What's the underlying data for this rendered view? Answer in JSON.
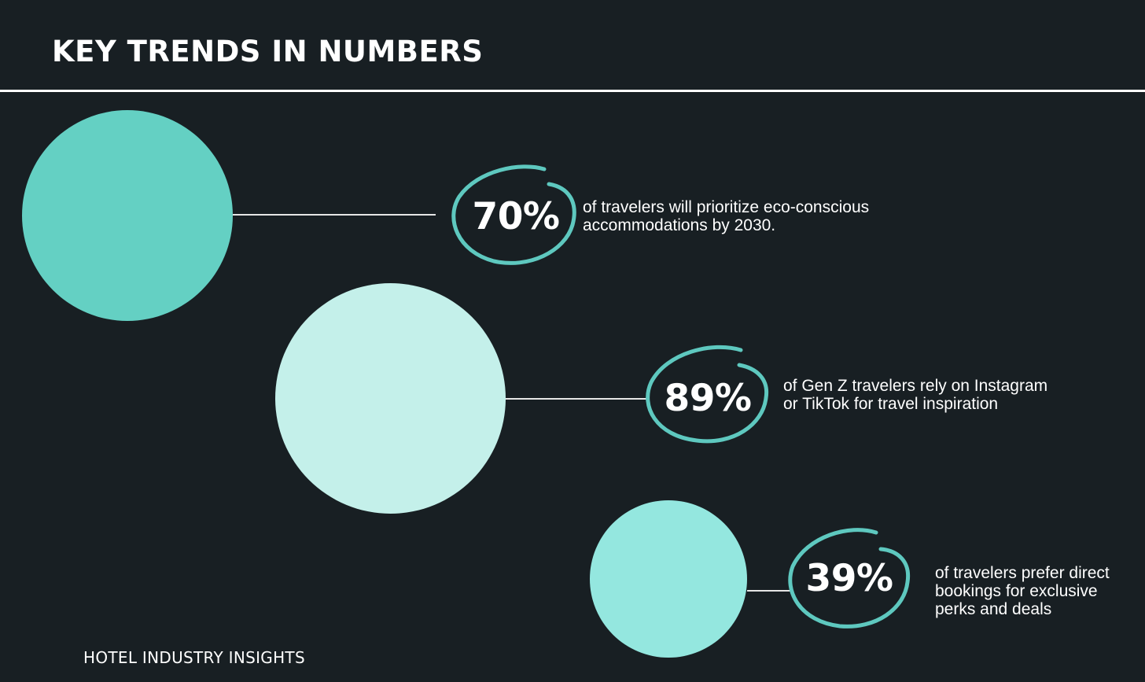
{
  "title": "KEY TRENDS IN NUMBERS",
  "footer": "HOTEL INDUSTRY INSIGHTS",
  "colors": {
    "background": "#181f23",
    "ring": "#5ec8bf",
    "circle_1": "#64d0c3",
    "circle_2": "#c4f0ea",
    "circle_3": "#94e7df"
  },
  "stats": [
    {
      "value": "70%",
      "lines": [
        "of travelers will prioritize eco-conscious",
        "accommodations by 2030."
      ]
    },
    {
      "value": "89%",
      "lines": [
        "of Gen Z travelers rely on Instagram",
        "or TikTok for travel inspiration"
      ]
    },
    {
      "value": "39%",
      "lines": [
        "of travelers prefer direct",
        "bookings for exclusive",
        "perks and deals"
      ]
    }
  ]
}
